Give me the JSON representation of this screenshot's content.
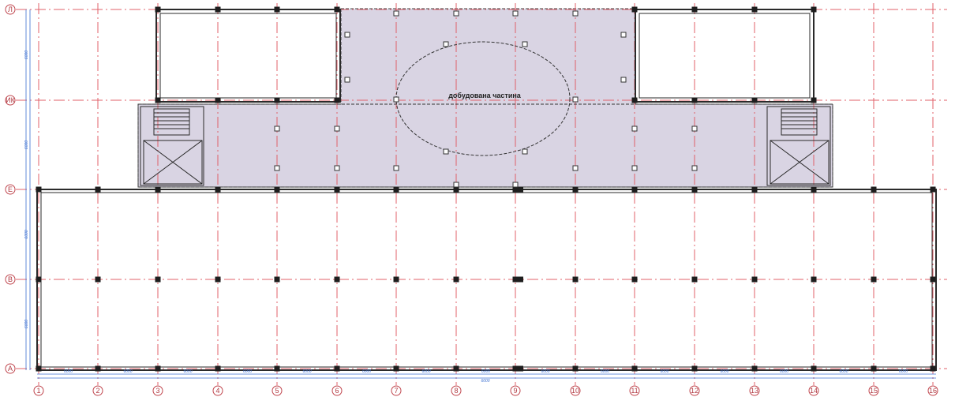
{
  "addition_label": "добудована частина",
  "axes_numbers": [
    "1",
    "2",
    "3",
    "4",
    "5",
    "6",
    "7",
    "8",
    "9",
    "10",
    "11",
    "12",
    "13",
    "14",
    "15",
    "16"
  ],
  "axes_letters": [
    "Л",
    "ИК",
    "Е",
    "В",
    "А"
  ],
  "dimension_text": "6000",
  "colors": {
    "grid": "#e0606a",
    "bubble": "#c0464e",
    "addition_fill": "#d9d4e3",
    "column": "#1e1e1e",
    "dimension": "#3b6fd1"
  }
}
